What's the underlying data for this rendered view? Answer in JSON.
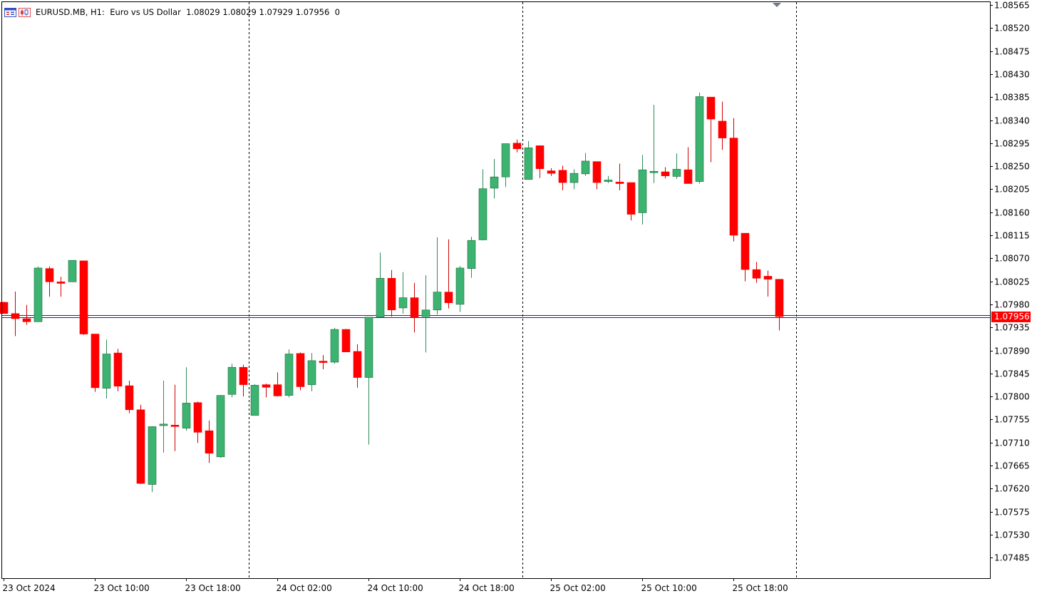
{
  "header": {
    "symbol": "EURUSD.MB",
    "timeframe": "H1:",
    "description": "Euro vs US Dollar",
    "ohlc": "1.08029 1.08029 1.07929 1.07956",
    "volume": "0"
  },
  "colors": {
    "bull": "#3cb371",
    "bear": "#ff0000",
    "bid_line": "#2020b0",
    "price_label_bg": "#ff0000",
    "price_label_text": "#ffffff",
    "grid": "#000000"
  },
  "chart_data": {
    "type": "candlestick",
    "symbol": "EURUSD.MB",
    "timeframe": "H1",
    "ylim": [
      1.0744,
      1.0859
    ],
    "current_price": "1.07956",
    "current_price_value": 1.07956,
    "price_ticks": [
      "1.08565",
      "1.08520",
      "1.08475",
      "1.08430",
      "1.08385",
      "1.08340",
      "1.08295",
      "1.08250",
      "1.08205",
      "1.08160",
      "1.08115",
      "1.08070",
      "1.08025",
      "1.07980",
      "1.07935",
      "1.07890",
      "1.07845",
      "1.07800",
      "1.07755",
      "1.07710",
      "1.07665",
      "1.07620",
      "1.07575",
      "1.07530",
      "1.07485"
    ],
    "time_labels": [
      {
        "label": "23 Oct 2024",
        "bar": 0
      },
      {
        "label": "23 Oct 10:00",
        "bar": 8
      },
      {
        "label": "23 Oct 18:00",
        "bar": 16
      },
      {
        "label": "24 Oct 02:00",
        "bar": 24
      },
      {
        "label": "24 Oct 10:00",
        "bar": 32
      },
      {
        "label": "24 Oct 18:00",
        "bar": 40
      },
      {
        "label": "25 Oct 02:00",
        "bar": 48
      },
      {
        "label": "25 Oct 10:00",
        "bar": 56
      },
      {
        "label": "25 Oct 18:00",
        "bar": 64
      }
    ],
    "period_separators": [
      21.5,
      45.5,
      69.5
    ],
    "candles": [
      {
        "o": 1.07984,
        "h": 1.07985,
        "l": 1.07962,
        "c": 1.07962
      },
      {
        "o": 1.07962,
        "h": 1.08005,
        "l": 1.07918,
        "c": 1.07952
      },
      {
        "o": 1.07952,
        "h": 1.07979,
        "l": 1.0794,
        "c": 1.07946
      },
      {
        "o": 1.07946,
        "h": 1.08054,
        "l": 1.07946,
        "c": 1.08051
      },
      {
        "o": 1.0805,
        "h": 1.08054,
        "l": 1.07995,
        "c": 1.08024
      },
      {
        "o": 1.08024,
        "h": 1.08034,
        "l": 1.07995,
        "c": 1.08021
      },
      {
        "o": 1.08024,
        "h": 1.08066,
        "l": 1.08024,
        "c": 1.08066
      },
      {
        "o": 1.08065,
        "h": 1.08065,
        "l": 1.0792,
        "c": 1.07922
      },
      {
        "o": 1.07922,
        "h": 1.07922,
        "l": 1.07809,
        "c": 1.07817
      },
      {
        "o": 1.07816,
        "h": 1.07911,
        "l": 1.07796,
        "c": 1.07883
      },
      {
        "o": 1.07885,
        "h": 1.07893,
        "l": 1.0781,
        "c": 1.0782
      },
      {
        "o": 1.07821,
        "h": 1.07831,
        "l": 1.07767,
        "c": 1.07774
      },
      {
        "o": 1.07774,
        "h": 1.07784,
        "l": 1.07629,
        "c": 1.0763
      },
      {
        "o": 1.07628,
        "h": 1.07742,
        "l": 1.07613,
        "c": 1.07741
      },
      {
        "o": 1.07743,
        "h": 1.07831,
        "l": 1.0769,
        "c": 1.07746
      },
      {
        "o": 1.07744,
        "h": 1.07823,
        "l": 1.07693,
        "c": 1.07743
      },
      {
        "o": 1.07738,
        "h": 1.07857,
        "l": 1.07733,
        "c": 1.07787
      },
      {
        "o": 1.07788,
        "h": 1.0779,
        "l": 1.07709,
        "c": 1.0773
      },
      {
        "o": 1.07733,
        "h": 1.07753,
        "l": 1.0767,
        "c": 1.07689
      },
      {
        "o": 1.07682,
        "h": 1.07803,
        "l": 1.0768,
        "c": 1.07802
      },
      {
        "o": 1.07804,
        "h": 1.07864,
        "l": 1.07798,
        "c": 1.07857
      },
      {
        "o": 1.07857,
        "h": 1.07862,
        "l": 1.078,
        "c": 1.07823
      },
      {
        "o": 1.07763,
        "h": 1.07824,
        "l": 1.07763,
        "c": 1.07822
      },
      {
        "o": 1.07823,
        "h": 1.07825,
        "l": 1.07798,
        "c": 1.07818
      },
      {
        "o": 1.07823,
        "h": 1.07847,
        "l": 1.078,
        "c": 1.07801
      },
      {
        "o": 1.07802,
        "h": 1.07892,
        "l": 1.07798,
        "c": 1.07883
      },
      {
        "o": 1.07884,
        "h": 1.07886,
        "l": 1.07812,
        "c": 1.07819
      },
      {
        "o": 1.07823,
        "h": 1.07885,
        "l": 1.0781,
        "c": 1.0787
      },
      {
        "o": 1.07869,
        "h": 1.07881,
        "l": 1.07853,
        "c": 1.07867
      },
      {
        "o": 1.07867,
        "h": 1.07934,
        "l": 1.07864,
        "c": 1.07931
      },
      {
        "o": 1.07931,
        "h": 1.07932,
        "l": 1.07887,
        "c": 1.07887
      },
      {
        "o": 1.07888,
        "h": 1.07902,
        "l": 1.07817,
        "c": 1.07837
      },
      {
        "o": 1.07837,
        "h": 1.07955,
        "l": 1.07706,
        "c": 1.07955
      },
      {
        "o": 1.07955,
        "h": 1.08081,
        "l": 1.07955,
        "c": 1.08031
      },
      {
        "o": 1.08031,
        "h": 1.08047,
        "l": 1.07956,
        "c": 1.07969
      },
      {
        "o": 1.07973,
        "h": 1.08043,
        "l": 1.07962,
        "c": 1.07993
      },
      {
        "o": 1.07993,
        "h": 1.08022,
        "l": 1.07925,
        "c": 1.07955
      },
      {
        "o": 1.07956,
        "h": 1.08037,
        "l": 1.07886,
        "c": 1.07969
      },
      {
        "o": 1.07969,
        "h": 1.08111,
        "l": 1.0796,
        "c": 1.08004
      },
      {
        "o": 1.08004,
        "h": 1.08107,
        "l": 1.07972,
        "c": 1.07983
      },
      {
        "o": 1.0798,
        "h": 1.08055,
        "l": 1.07965,
        "c": 1.08051
      },
      {
        "o": 1.0805,
        "h": 1.08112,
        "l": 1.08032,
        "c": 1.08105
      },
      {
        "o": 1.08106,
        "h": 1.08244,
        "l": 1.08105,
        "c": 1.08206
      },
      {
        "o": 1.08207,
        "h": 1.08264,
        "l": 1.08187,
        "c": 1.08229
      },
      {
        "o": 1.08229,
        "h": 1.08294,
        "l": 1.08209,
        "c": 1.08294
      },
      {
        "o": 1.08295,
        "h": 1.08302,
        "l": 1.08277,
        "c": 1.08284
      },
      {
        "o": 1.08224,
        "h": 1.08299,
        "l": 1.08224,
        "c": 1.08286
      },
      {
        "o": 1.0829,
        "h": 1.0829,
        "l": 1.08227,
        "c": 1.08245
      },
      {
        "o": 1.08241,
        "h": 1.08246,
        "l": 1.08231,
        "c": 1.08236
      },
      {
        "o": 1.08242,
        "h": 1.08251,
        "l": 1.08203,
        "c": 1.08218
      },
      {
        "o": 1.08218,
        "h": 1.08244,
        "l": 1.08205,
        "c": 1.08236
      },
      {
        "o": 1.08235,
        "h": 1.08276,
        "l": 1.08231,
        "c": 1.0826
      },
      {
        "o": 1.08259,
        "h": 1.08259,
        "l": 1.08205,
        "c": 1.08218
      },
      {
        "o": 1.0822,
        "h": 1.08231,
        "l": 1.08217,
        "c": 1.08223
      },
      {
        "o": 1.08219,
        "h": 1.08255,
        "l": 1.08203,
        "c": 1.08216
      },
      {
        "o": 1.08218,
        "h": 1.08218,
        "l": 1.08144,
        "c": 1.08156
      },
      {
        "o": 1.08159,
        "h": 1.08272,
        "l": 1.08136,
        "c": 1.08243
      },
      {
        "o": 1.0824,
        "h": 1.0837,
        "l": 1.08217,
        "c": 1.0824
      },
      {
        "o": 1.08239,
        "h": 1.08248,
        "l": 1.08226,
        "c": 1.08231
      },
      {
        "o": 1.0823,
        "h": 1.08275,
        "l": 1.08225,
        "c": 1.08244
      },
      {
        "o": 1.08243,
        "h": 1.08287,
        "l": 1.08216,
        "c": 1.08216
      },
      {
        "o": 1.0822,
        "h": 1.08394,
        "l": 1.08216,
        "c": 1.08386
      },
      {
        "o": 1.08385,
        "h": 1.08385,
        "l": 1.08258,
        "c": 1.08342
      },
      {
        "o": 1.08338,
        "h": 1.08376,
        "l": 1.08282,
        "c": 1.08305
      },
      {
        "o": 1.08305,
        "h": 1.08344,
        "l": 1.08103,
        "c": 1.08115
      },
      {
        "o": 1.08119,
        "h": 1.08119,
        "l": 1.08025,
        "c": 1.08048
      },
      {
        "o": 1.08048,
        "h": 1.08063,
        "l": 1.08022,
        "c": 1.08031
      },
      {
        "o": 1.08035,
        "h": 1.08046,
        "l": 1.07995,
        "c": 1.08029
      },
      {
        "o": 1.08029,
        "h": 1.08029,
        "l": 1.07929,
        "c": 1.07956
      }
    ]
  }
}
